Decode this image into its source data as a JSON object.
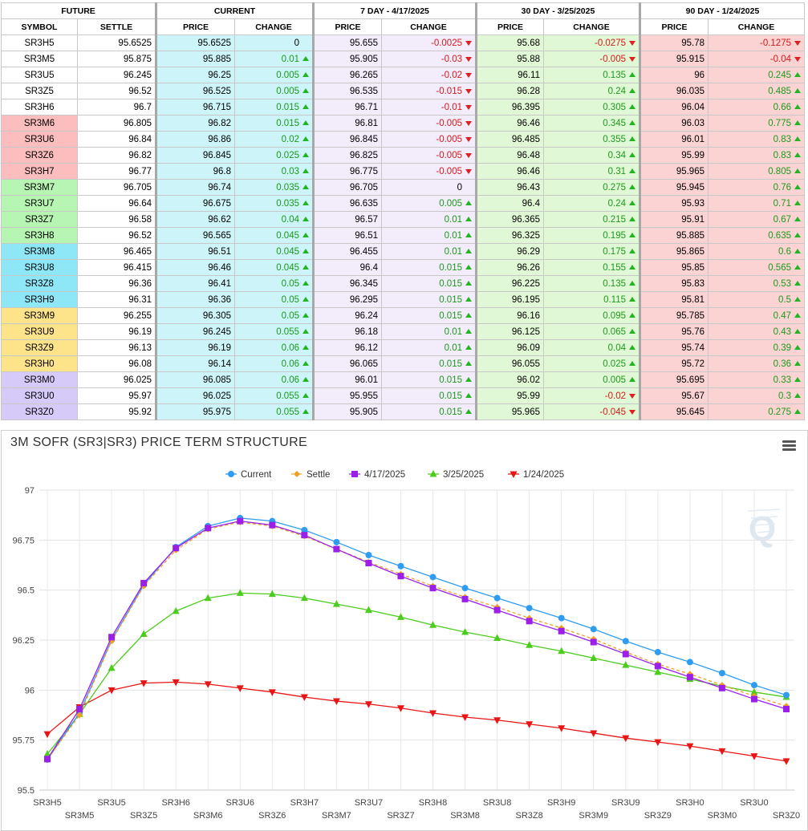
{
  "table": {
    "groups": [
      "FUTURE",
      "CURRENT",
      "7 DAY - 4/17/2025",
      "30 DAY - 3/25/2025",
      "90 DAY - 1/24/2025"
    ],
    "columns": [
      "SYMBOL",
      "SETTLE",
      "PRICE",
      "CHANGE",
      "PRICE",
      "CHANGE",
      "PRICE",
      "CHANGE",
      "PRICE",
      "CHANGE"
    ],
    "pack_colors": {
      "none": "#ffffff",
      "red": "#fbbdbd",
      "green": "#b7f5b2",
      "blue": "#8ee7f7",
      "gold": "#fde38a",
      "purple": "#d6cbf8"
    },
    "rows": [
      {
        "symbol": "SR3H5",
        "pack": "none",
        "settle": "95.6525",
        "cur_price": "95.6525",
        "cur_change": "0",
        "d7_price": "95.655",
        "d7_change": "-0.0025",
        "d30_price": "95.68",
        "d30_change": "-0.0275",
        "d90_price": "95.78",
        "d90_change": "-0.1275"
      },
      {
        "symbol": "SR3M5",
        "pack": "none",
        "settle": "95.875",
        "cur_price": "95.885",
        "cur_change": "0.01",
        "d7_price": "95.905",
        "d7_change": "-0.03",
        "d30_price": "95.88",
        "d30_change": "-0.005",
        "d90_price": "95.915",
        "d90_change": "-0.04"
      },
      {
        "symbol": "SR3U5",
        "pack": "none",
        "settle": "96.245",
        "cur_price": "96.25",
        "cur_change": "0.005",
        "d7_price": "96.265",
        "d7_change": "-0.02",
        "d30_price": "96.11",
        "d30_change": "0.135",
        "d90_price": "96",
        "d90_change": "0.245"
      },
      {
        "symbol": "SR3Z5",
        "pack": "none",
        "settle": "96.52",
        "cur_price": "96.525",
        "cur_change": "0.005",
        "d7_price": "96.535",
        "d7_change": "-0.015",
        "d30_price": "96.28",
        "d30_change": "0.24",
        "d90_price": "96.035",
        "d90_change": "0.485"
      },
      {
        "symbol": "SR3H6",
        "pack": "none",
        "settle": "96.7",
        "cur_price": "96.715",
        "cur_change": "0.015",
        "d7_price": "96.71",
        "d7_change": "-0.01",
        "d30_price": "96.395",
        "d30_change": "0.305",
        "d90_price": "96.04",
        "d90_change": "0.66"
      },
      {
        "symbol": "SR3M6",
        "pack": "red",
        "settle": "96.805",
        "cur_price": "96.82",
        "cur_change": "0.015",
        "d7_price": "96.81",
        "d7_change": "-0.005",
        "d30_price": "96.46",
        "d30_change": "0.345",
        "d90_price": "96.03",
        "d90_change": "0.775"
      },
      {
        "symbol": "SR3U6",
        "pack": "red",
        "settle": "96.84",
        "cur_price": "96.86",
        "cur_change": "0.02",
        "d7_price": "96.845",
        "d7_change": "-0.005",
        "d30_price": "96.485",
        "d30_change": "0.355",
        "d90_price": "96.01",
        "d90_change": "0.83"
      },
      {
        "symbol": "SR3Z6",
        "pack": "red",
        "settle": "96.82",
        "cur_price": "96.845",
        "cur_change": "0.025",
        "d7_price": "96.825",
        "d7_change": "-0.005",
        "d30_price": "96.48",
        "d30_change": "0.34",
        "d90_price": "95.99",
        "d90_change": "0.83"
      },
      {
        "symbol": "SR3H7",
        "pack": "red",
        "settle": "96.77",
        "cur_price": "96.8",
        "cur_change": "0.03",
        "d7_price": "96.775",
        "d7_change": "-0.005",
        "d30_price": "96.46",
        "d30_change": "0.31",
        "d90_price": "95.965",
        "d90_change": "0.805"
      },
      {
        "symbol": "SR3M7",
        "pack": "green",
        "settle": "96.705",
        "cur_price": "96.74",
        "cur_change": "0.035",
        "d7_price": "96.705",
        "d7_change": "0",
        "d30_price": "96.43",
        "d30_change": "0.275",
        "d90_price": "95.945",
        "d90_change": "0.76"
      },
      {
        "symbol": "SR3U7",
        "pack": "green",
        "settle": "96.64",
        "cur_price": "96.675",
        "cur_change": "0.035",
        "d7_price": "96.635",
        "d7_change": "0.005",
        "d30_price": "96.4",
        "d30_change": "0.24",
        "d90_price": "95.93",
        "d90_change": "0.71"
      },
      {
        "symbol": "SR3Z7",
        "pack": "green",
        "settle": "96.58",
        "cur_price": "96.62",
        "cur_change": "0.04",
        "d7_price": "96.57",
        "d7_change": "0.01",
        "d30_price": "96.365",
        "d30_change": "0.215",
        "d90_price": "95.91",
        "d90_change": "0.67"
      },
      {
        "symbol": "SR3H8",
        "pack": "green",
        "settle": "96.52",
        "cur_price": "96.565",
        "cur_change": "0.045",
        "d7_price": "96.51",
        "d7_change": "0.01",
        "d30_price": "96.325",
        "d30_change": "0.195",
        "d90_price": "95.885",
        "d90_change": "0.635"
      },
      {
        "symbol": "SR3M8",
        "pack": "blue",
        "settle": "96.465",
        "cur_price": "96.51",
        "cur_change": "0.045",
        "d7_price": "96.455",
        "d7_change": "0.01",
        "d30_price": "96.29",
        "d30_change": "0.175",
        "d90_price": "95.865",
        "d90_change": "0.6"
      },
      {
        "symbol": "SR3U8",
        "pack": "blue",
        "settle": "96.415",
        "cur_price": "96.46",
        "cur_change": "0.045",
        "d7_price": "96.4",
        "d7_change": "0.015",
        "d30_price": "96.26",
        "d30_change": "0.155",
        "d90_price": "95.85",
        "d90_change": "0.565"
      },
      {
        "symbol": "SR3Z8",
        "pack": "blue",
        "settle": "96.36",
        "cur_price": "96.41",
        "cur_change": "0.05",
        "d7_price": "96.345",
        "d7_change": "0.015",
        "d30_price": "96.225",
        "d30_change": "0.135",
        "d90_price": "95.83",
        "d90_change": "0.53"
      },
      {
        "symbol": "SR3H9",
        "pack": "blue",
        "settle": "96.31",
        "cur_price": "96.36",
        "cur_change": "0.05",
        "d7_price": "96.295",
        "d7_change": "0.015",
        "d30_price": "96.195",
        "d30_change": "0.115",
        "d90_price": "95.81",
        "d90_change": "0.5"
      },
      {
        "symbol": "SR3M9",
        "pack": "gold",
        "settle": "96.255",
        "cur_price": "96.305",
        "cur_change": "0.05",
        "d7_price": "96.24",
        "d7_change": "0.015",
        "d30_price": "96.16",
        "d30_change": "0.095",
        "d90_price": "95.785",
        "d90_change": "0.47"
      },
      {
        "symbol": "SR3U9",
        "pack": "gold",
        "settle": "96.19",
        "cur_price": "96.245",
        "cur_change": "0.055",
        "d7_price": "96.18",
        "d7_change": "0.01",
        "d30_price": "96.125",
        "d30_change": "0.065",
        "d90_price": "95.76",
        "d90_change": "0.43"
      },
      {
        "symbol": "SR3Z9",
        "pack": "gold",
        "settle": "96.13",
        "cur_price": "96.19",
        "cur_change": "0.06",
        "d7_price": "96.12",
        "d7_change": "0.01",
        "d30_price": "96.09",
        "d30_change": "0.04",
        "d90_price": "95.74",
        "d90_change": "0.39"
      },
      {
        "symbol": "SR3H0",
        "pack": "gold",
        "settle": "96.08",
        "cur_price": "96.14",
        "cur_change": "0.06",
        "d7_price": "96.065",
        "d7_change": "0.015",
        "d30_price": "96.055",
        "d30_change": "0.025",
        "d90_price": "95.72",
        "d90_change": "0.36"
      },
      {
        "symbol": "SR3M0",
        "pack": "purple",
        "settle": "96.025",
        "cur_price": "96.085",
        "cur_change": "0.06",
        "d7_price": "96.01",
        "d7_change": "0.015",
        "d30_price": "96.02",
        "d30_change": "0.005",
        "d90_price": "95.695",
        "d90_change": "0.33"
      },
      {
        "symbol": "SR3U0",
        "pack": "purple",
        "settle": "95.97",
        "cur_price": "96.025",
        "cur_change": "0.055",
        "d7_price": "95.955",
        "d7_change": "0.015",
        "d30_price": "95.99",
        "d30_change": "-0.02",
        "d90_price": "95.67",
        "d90_change": "0.3"
      },
      {
        "symbol": "SR3Z0",
        "pack": "purple",
        "settle": "95.92",
        "cur_price": "95.975",
        "cur_change": "0.055",
        "d7_price": "95.905",
        "d7_change": "0.015",
        "d30_price": "95.965",
        "d30_change": "-0.045",
        "d90_price": "95.645",
        "d90_change": "0.275"
      }
    ]
  },
  "chart_data": {
    "type": "line",
    "title": "3M SOFR (SR3|SR3) PRICE TERM STRUCTURE",
    "xlabel": "",
    "ylabel": "",
    "ylim": [
      95.5,
      97
    ],
    "yticks": [
      "97",
      "96.75",
      "96.5",
      "96.25",
      "96",
      "95.75",
      "95.5"
    ],
    "ytick_values": [
      97,
      96.75,
      96.5,
      96.25,
      96,
      95.75,
      95.5
    ],
    "grid": true,
    "legend": "top-center",
    "categories": [
      "SR3H5",
      "SR3M5",
      "SR3U5",
      "SR3Z5",
      "SR3H6",
      "SR3M6",
      "SR3U6",
      "SR3Z6",
      "SR3H7",
      "SR3M7",
      "SR3U7",
      "SR3Z7",
      "SR3H8",
      "SR3M8",
      "SR3U8",
      "SR3Z8",
      "SR3H9",
      "SR3M9",
      "SR3U9",
      "SR3Z9",
      "SR3H0",
      "SR3M0",
      "SR3U0",
      "SR3Z0"
    ],
    "series": [
      {
        "name": "Current",
        "color": "#2e9cf0",
        "marker": "circle",
        "dashed": false,
        "values": [
          95.6525,
          95.885,
          96.25,
          96.525,
          96.715,
          96.82,
          96.86,
          96.845,
          96.8,
          96.74,
          96.675,
          96.62,
          96.565,
          96.51,
          96.46,
          96.41,
          96.36,
          96.305,
          96.245,
          96.19,
          96.14,
          96.085,
          96.025,
          95.975
        ]
      },
      {
        "name": "Settle",
        "color": "#f0a020",
        "marker": "diamond",
        "dashed": true,
        "values": [
          95.6525,
          95.875,
          96.245,
          96.52,
          96.7,
          96.805,
          96.84,
          96.82,
          96.77,
          96.705,
          96.64,
          96.58,
          96.52,
          96.465,
          96.415,
          96.36,
          96.31,
          96.255,
          96.19,
          96.13,
          96.08,
          96.025,
          95.97,
          95.92
        ]
      },
      {
        "name": "4/17/2025",
        "color": "#9b1fe8",
        "marker": "square",
        "dashed": false,
        "values": [
          95.655,
          95.905,
          96.265,
          96.535,
          96.71,
          96.81,
          96.845,
          96.825,
          96.775,
          96.705,
          96.635,
          96.57,
          96.51,
          96.455,
          96.4,
          96.345,
          96.295,
          96.24,
          96.18,
          96.12,
          96.065,
          96.01,
          95.955,
          95.905
        ]
      },
      {
        "name": "3/25/2025",
        "color": "#4ccc1c",
        "marker": "triangle",
        "dashed": false,
        "values": [
          95.68,
          95.88,
          96.11,
          96.28,
          96.395,
          96.46,
          96.485,
          96.48,
          96.46,
          96.43,
          96.4,
          96.365,
          96.325,
          96.29,
          96.26,
          96.225,
          96.195,
          96.16,
          96.125,
          96.09,
          96.055,
          96.02,
          95.99,
          95.965
        ]
      },
      {
        "name": "1/24/2025",
        "color": "#e81515",
        "marker": "triangle-down",
        "dashed": false,
        "values": [
          95.78,
          95.915,
          96,
          96.035,
          96.04,
          96.03,
          96.01,
          95.99,
          95.965,
          95.945,
          95.93,
          95.91,
          95.885,
          95.865,
          95.85,
          95.83,
          95.81,
          95.785,
          95.76,
          95.74,
          95.72,
          95.695,
          95.67,
          95.645
        ]
      }
    ]
  },
  "icons": {
    "menu": "hamburger-icon",
    "watermark": "q-logo-icon",
    "arrow_up": "arrow-up-icon",
    "arrow_down": "arrow-down-icon"
  }
}
